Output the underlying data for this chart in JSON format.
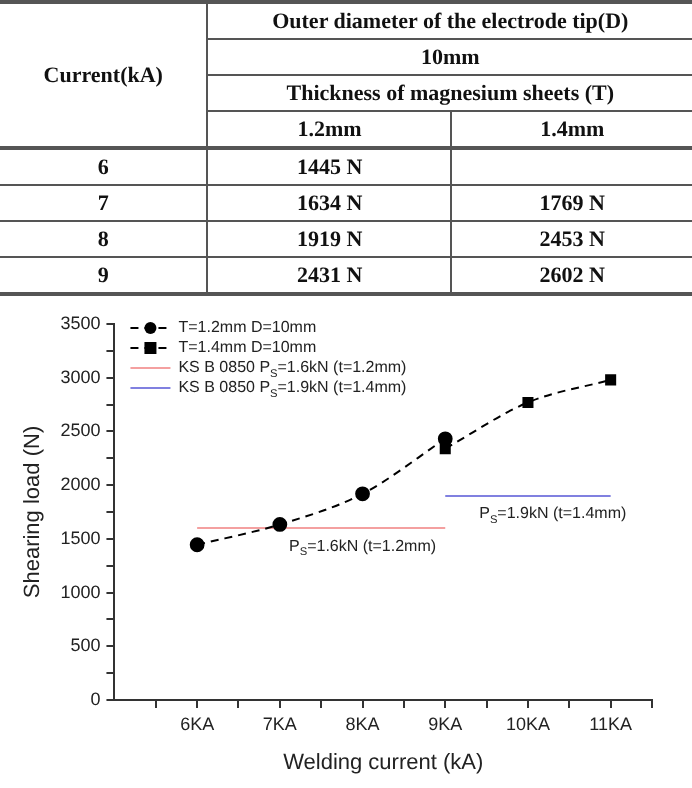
{
  "chart_data": [
    {
      "type": "heatmap",
      "title": "Outer diameter of the electrode tip(D)",
      "subtitle": "10mm",
      "legend_title": "Thickness of magnesium sheets (T)",
      "ylabel": "Current(kA)",
      "categories": [
        "1.2mm",
        "1.4mm"
      ],
      "y_categories": [
        "6",
        "7",
        "8",
        "9"
      ],
      "cells": [
        [
          1445,
          null
        ],
        [
          1634,
          1769
        ],
        [
          1919,
          2453
        ],
        [
          2431,
          2602
        ]
      ],
      "cell_labels": [
        [
          "1445 N",
          null
        ],
        [
          "1634 N",
          "1769 N"
        ],
        [
          "1919 N",
          "2453 N"
        ],
        [
          "2431 N",
          "2602 N"
        ]
      ]
    },
    {
      "type": "line",
      "xlabel": "Welding current (kA)",
      "ylabel": "Shearing load (N)",
      "xlim": [
        5,
        11.5
      ],
      "xticks": [
        {
          "value": 5.5,
          "label": null
        },
        {
          "value": 6,
          "label": "6KA"
        },
        {
          "value": 6.5,
          "label": null
        },
        {
          "value": 7,
          "label": "7KA"
        },
        {
          "value": 7.5,
          "label": null
        },
        {
          "value": 8,
          "label": "8KA"
        },
        {
          "value": 8.5,
          "label": null
        },
        {
          "value": 9,
          "label": "9KA"
        },
        {
          "value": 9.5,
          "label": null
        },
        {
          "value": 10,
          "label": "10KA"
        },
        {
          "value": 10.5,
          "label": null
        },
        {
          "value": 11,
          "label": "11KA"
        },
        {
          "value": 11.5,
          "label": null
        }
      ],
      "ylim": [
        0,
        3500
      ],
      "yticks": [
        0,
        {
          "value": 250,
          "label": null
        },
        500,
        {
          "value": 750,
          "label": null
        },
        1000,
        {
          "value": 1250,
          "label": null
        },
        1500,
        {
          "value": 1750,
          "label": null
        },
        2000,
        {
          "value": 2250,
          "label": null
        },
        2500,
        {
          "value": 2750,
          "label": null
        },
        3000,
        {
          "value": 3250,
          "label": null
        },
        3500
      ],
      "grid": false,
      "legend": "top left",
      "series": [
        {
          "name": "T=1.2mm D=10mm",
          "color": "#000000",
          "x": [
            6,
            7,
            8,
            9
          ],
          "values": [
            1445,
            1634,
            1919,
            2431
          ],
          "marker": "circle",
          "line_style": "dashed"
        },
        {
          "name": "T=1.4mm D=10mm",
          "color": "#000000",
          "x": [
            9,
            10,
            11
          ],
          "values": [
            2340,
            2770,
            2980
          ],
          "marker": "square",
          "line_style": "dashed"
        },
        {
          "name": "KS B 0850 P$_{S}$=1.6kN (t=1.2mm)",
          "color": "#f4a0a0",
          "x": [
            6,
            9
          ],
          "values": [
            1600,
            1600
          ],
          "marker": "none",
          "line_style": "solid"
        },
        {
          "name": "KS B 0850 P$_{S}$=1.9kN (t=1.4mm)",
          "color": "#8080e0",
          "x": [
            9,
            11
          ],
          "values": [
            1900,
            1900
          ],
          "marker": "none",
          "line_style": "solid"
        }
      ],
      "annotations": [
        {
          "text": "P$_{S}$=1.6kN (t=1.2mm)",
          "x": 8,
          "y": 1600
        },
        {
          "text": "P$_{S}$=1.9kN (t=1.4mm)",
          "x": 10.3,
          "y": 1900
        }
      ]
    }
  ]
}
